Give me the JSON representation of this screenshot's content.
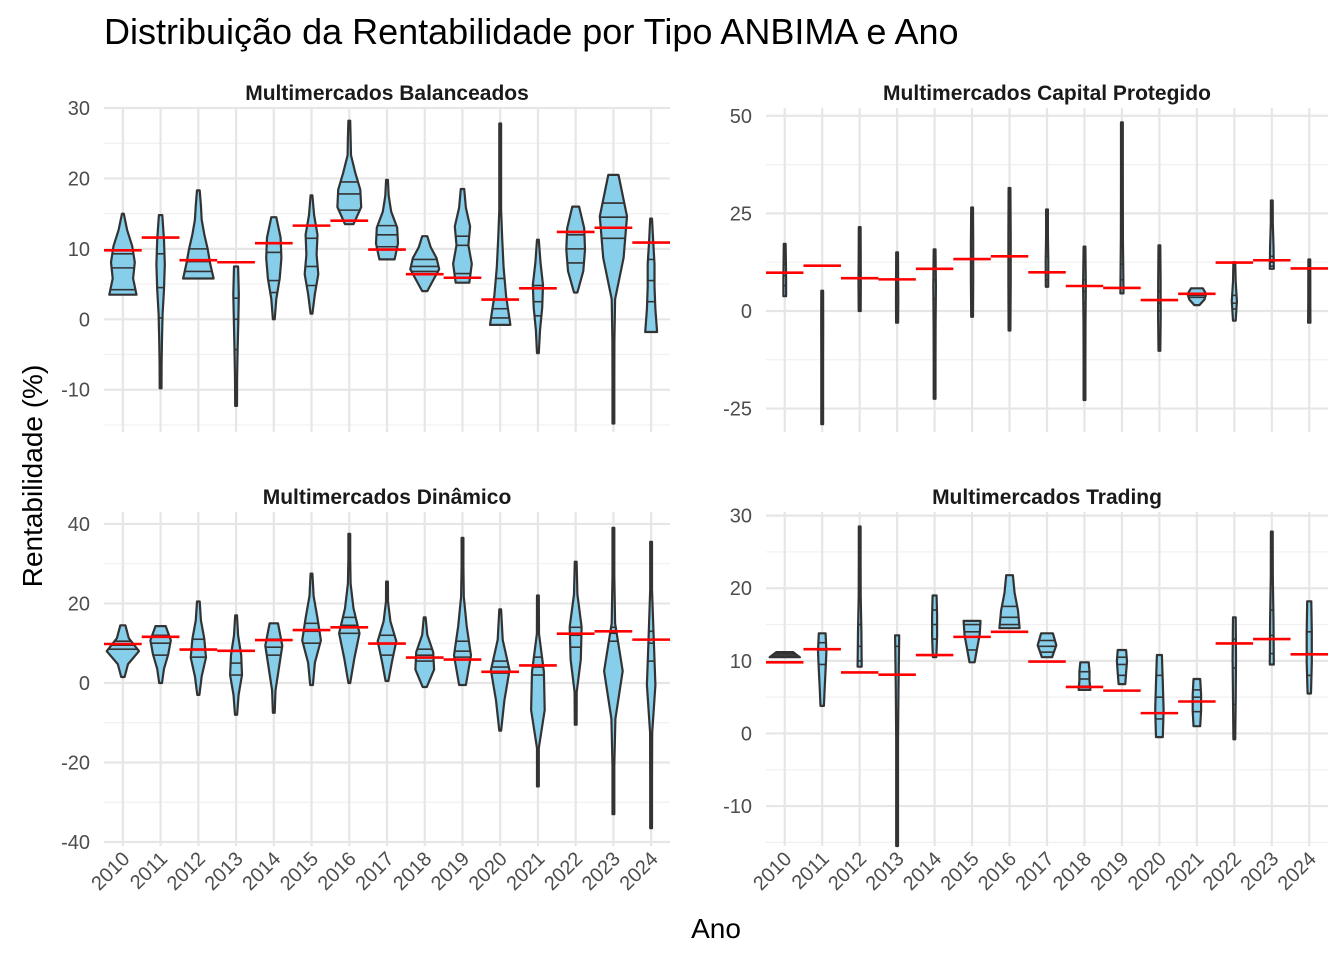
{
  "chart_data": {
    "type": "violin",
    "title": "Distribuição da Rentabilidade por Tipo ANBIMA e Ano",
    "xlabel": "Ano",
    "ylabel": "Rentabilidade (%)",
    "categories": [
      "2010",
      "2011",
      "2012",
      "2013",
      "2014",
      "2015",
      "2016",
      "2017",
      "2018",
      "2019",
      "2020",
      "2021",
      "2022",
      "2023",
      "2024"
    ],
    "benchmark_color": "#ff0000",
    "violin_fill": "#87ceeb",
    "benchmark": [
      9.8,
      11.6,
      8.4,
      8.1,
      10.8,
      13.3,
      14.0,
      9.9,
      6.4,
      5.9,
      2.8,
      4.4,
      12.4,
      13.0,
      10.9
    ],
    "panels": [
      {
        "title": "Multimercados Balanceados",
        "ylim": [
          -16,
          30
        ],
        "yticks": [
          -10,
          0,
          10,
          20,
          30
        ],
        "violins": [
          {
            "min": 3.5,
            "max": 15,
            "q1": 4.2,
            "median": 7.3,
            "q3": 9.3,
            "widths": [
              0.8,
              0.6,
              0.7,
              0.55,
              0.25,
              0.05
            ]
          },
          {
            "min": -9.8,
            "max": 14.8,
            "q1": 0.2,
            "median": 4.5,
            "q3": 9.3,
            "widths": [
              0.05,
              0.06,
              0.08,
              0.12,
              0.2,
              0.25,
              0.2,
              0.1
            ]
          },
          {
            "min": 5.8,
            "max": 18.3,
            "q1": 6.8,
            "median": 8.2,
            "q3": 10.0,
            "widths": [
              0.9,
              0.7,
              0.55,
              0.35,
              0.2,
              0.15,
              0.08
            ]
          },
          {
            "min": -12.3,
            "max": 7.5,
            "q1": -4.3,
            "median": 0.0,
            "q3": 3.0,
            "widths": [
              0.03,
              0.06,
              0.09,
              0.13,
              0.16,
              0.12
            ]
          },
          {
            "min": 0.0,
            "max": 14.5,
            "q1": 3.8,
            "median": 5.5,
            "q3": 9.5,
            "widths": [
              0.05,
              0.15,
              0.35,
              0.45,
              0.4,
              0.15
            ]
          },
          {
            "min": 0.8,
            "max": 17.6,
            "q1": 4.8,
            "median": 7.5,
            "q3": 11.5,
            "widths": [
              0.05,
              0.2,
              0.4,
              0.3,
              0.35,
              0.15,
              0.05
            ]
          },
          {
            "min": 13.5,
            "max": 28.2,
            "q1": 15.5,
            "median": 17.8,
            "q3": 19.5,
            "widths": [
              0.25,
              0.7,
              0.65,
              0.35,
              0.1,
              0.08,
              0.05
            ]
          },
          {
            "min": 8.5,
            "max": 19.8,
            "q1": 10.3,
            "median": 12.0,
            "q3": 13.3,
            "widths": [
              0.45,
              0.65,
              0.6,
              0.25,
              0.1,
              0.04
            ]
          },
          {
            "min": 4.0,
            "max": 11.8,
            "q1": 6.8,
            "median": 7.5,
            "q3": 8.5,
            "widths": [
              0.15,
              0.5,
              0.85,
              0.7,
              0.35,
              0.15
            ]
          },
          {
            "min": 5.2,
            "max": 18.5,
            "q1": 6.5,
            "median": 10.5,
            "q3": 11.8,
            "widths": [
              0.4,
              0.55,
              0.35,
              0.45,
              0.2,
              0.1
            ]
          },
          {
            "min": -0.8,
            "max": 27.8,
            "q1": 0.2,
            "median": 1.5,
            "q3": 5.8,
            "widths": [
              0.6,
              0.35,
              0.2,
              0.12,
              0.05,
              0.04,
              0.03,
              0.02
            ]
          },
          {
            "min": -4.8,
            "max": 11.3,
            "q1": 0.5,
            "median": 2.5,
            "q3": 4.8,
            "widths": [
              0.03,
              0.12,
              0.25,
              0.3,
              0.15,
              0.05
            ]
          },
          {
            "min": 3.8,
            "max": 16.0,
            "q1": 8.0,
            "median": 10.0,
            "q3": 12.0,
            "widths": [
              0.1,
              0.45,
              0.55,
              0.5,
              0.2
            ]
          },
          {
            "min": -14.8,
            "max": 20.5,
            "q1": 11.5,
            "median": 14.5,
            "q3": 16.5,
            "widths": [
              0.03,
              0.04,
              0.06,
              0.1,
              0.6,
              0.8,
              0.3
            ]
          },
          {
            "min": -1.8,
            "max": 14.3,
            "q1": 2.5,
            "median": 5.5,
            "q3": 8.5,
            "widths": [
              0.35,
              0.25,
              0.2,
              0.2,
              0.12,
              0.05
            ]
          }
        ]
      },
      {
        "title": "Multimercados Capital Protegido",
        "ylim": [
          -31,
          52
        ],
        "yticks": [
          -25,
          0,
          25,
          50
        ],
        "violins": [
          {
            "min": 3.8,
            "max": 17.2,
            "q1": 6.5,
            "median": 9.0,
            "q3": 12.0,
            "widths": [
              0.08,
              0.08,
              0.07,
              0.05
            ]
          },
          {
            "min": -29.0,
            "max": 5.2,
            "q1": -5.0,
            "median": -3.0,
            "q3": 0.0,
            "widths": [
              0.03,
              0.03,
              0.04,
              0.06,
              0.05
            ]
          },
          {
            "min": 0.0,
            "max": 21.5,
            "q1": 5.0,
            "median": 8.5,
            "q3": 12.0,
            "widths": [
              0.06,
              0.07,
              0.06,
              0.04
            ]
          },
          {
            "min": -3.0,
            "max": 15.0,
            "q1": 3.0,
            "median": 7.0,
            "q3": 10.0,
            "widths": [
              0.06,
              0.07,
              0.06,
              0.04
            ]
          },
          {
            "min": -22.5,
            "max": 15.8,
            "q1": 3.0,
            "median": 8.0,
            "q3": 11.0,
            "widths": [
              0.03,
              0.04,
              0.06,
              0.08,
              0.05
            ]
          },
          {
            "min": -1.5,
            "max": 26.5,
            "q1": 8.0,
            "median": 12.0,
            "q3": 16.0,
            "widths": [
              0.05,
              0.07,
              0.07,
              0.05
            ]
          },
          {
            "min": -5.0,
            "max": 31.5,
            "q1": 10.0,
            "median": 13.0,
            "q3": 17.0,
            "widths": [
              0.04,
              0.07,
              0.07,
              0.04
            ]
          },
          {
            "min": 6.2,
            "max": 26.0,
            "q1": 8.0,
            "median": 10.0,
            "q3": 14.0,
            "widths": [
              0.07,
              0.08,
              0.05,
              0.03
            ]
          },
          {
            "min": -22.8,
            "max": 16.5,
            "q1": 2.0,
            "median": 5.0,
            "q3": 8.0,
            "widths": [
              0.03,
              0.04,
              0.06,
              0.08,
              0.05
            ]
          },
          {
            "min": 4.5,
            "max": 48.3,
            "q1": 6.0,
            "median": 8.0,
            "q3": 12.0,
            "widths": [
              0.09,
              0.06,
              0.04,
              0.03
            ]
          },
          {
            "min": -10.2,
            "max": 16.8,
            "q1": 0.0,
            "median": 2.0,
            "q3": 5.0,
            "widths": [
              0.04,
              0.08,
              0.07,
              0.04
            ]
          },
          {
            "min": 1.5,
            "max": 5.8,
            "q1": 3.5,
            "median": 4.0,
            "q3": 4.5,
            "widths": [
              0.15,
              0.45,
              0.55,
              0.35
            ]
          },
          {
            "min": -2.5,
            "max": 12.5,
            "q1": 0.5,
            "median": 2.0,
            "q3": 4.0,
            "widths": [
              0.08,
              0.15,
              0.08,
              0.04
            ]
          },
          {
            "min": 10.8,
            "max": 28.3,
            "q1": 11.5,
            "median": 12.5,
            "q3": 14.0,
            "widths": [
              0.12,
              0.1,
              0.06,
              0.04
            ]
          },
          {
            "min": -3.0,
            "max": 13.2,
            "q1": 0.5,
            "median": 5.0,
            "q3": 10.0,
            "widths": [
              0.07,
              0.06,
              0.06,
              0.05
            ]
          }
        ]
      },
      {
        "title": "Multimercados Dinâmico",
        "ylim": [
          -41,
          43
        ],
        "yticks": [
          -40,
          -20,
          0,
          20,
          40
        ],
        "violins": [
          {
            "min": 1.5,
            "max": 14.5,
            "q1": 8.5,
            "median": 9.5,
            "q3": 10.5,
            "widths": [
              0.1,
              0.3,
              0.95,
              0.35,
              0.15
            ]
          },
          {
            "min": 0.0,
            "max": 14.3,
            "q1": 7.0,
            "median": 10.0,
            "q3": 12.0,
            "widths": [
              0.08,
              0.2,
              0.45,
              0.6,
              0.3
            ]
          },
          {
            "min": -3.0,
            "max": 20.5,
            "q1": 6.5,
            "median": 8.5,
            "q3": 11.0,
            "widths": [
              0.06,
              0.2,
              0.45,
              0.35,
              0.15,
              0.08
            ]
          },
          {
            "min": -8.0,
            "max": 17.0,
            "q1": 2.0,
            "median": 5.0,
            "q3": 8.0,
            "widths": [
              0.06,
              0.15,
              0.35,
              0.3,
              0.12,
              0.05
            ]
          },
          {
            "min": -7.5,
            "max": 15.0,
            "q1": 7.0,
            "median": 9.0,
            "q3": 11.0,
            "widths": [
              0.05,
              0.1,
              0.3,
              0.5,
              0.25
            ]
          },
          {
            "min": -0.5,
            "max": 27.5,
            "q1": 10.0,
            "median": 13.0,
            "q3": 15.0,
            "widths": [
              0.08,
              0.2,
              0.55,
              0.35,
              0.12,
              0.05
            ]
          },
          {
            "min": 0.0,
            "max": 37.5,
            "q1": 12.5,
            "median": 14.5,
            "q3": 16.5,
            "widths": [
              0.05,
              0.3,
              0.6,
              0.25,
              0.08,
              0.04,
              0.03
            ]
          },
          {
            "min": 0.5,
            "max": 25.5,
            "q1": 7.0,
            "median": 10.0,
            "q3": 12.0,
            "widths": [
              0.08,
              0.3,
              0.55,
              0.2,
              0.06,
              0.04
            ]
          },
          {
            "min": -1.0,
            "max": 16.5,
            "q1": 5.5,
            "median": 7.0,
            "q3": 8.5,
            "widths": [
              0.12,
              0.55,
              0.5,
              0.15,
              0.05
            ]
          },
          {
            "min": -0.5,
            "max": 36.5,
            "q1": 6.5,
            "median": 8.0,
            "q3": 10.5,
            "widths": [
              0.2,
              0.5,
              0.25,
              0.08,
              0.05,
              0.03
            ]
          },
          {
            "min": -12.0,
            "max": 18.5,
            "q1": 2.5,
            "median": 4.0,
            "q3": 5.5,
            "widths": [
              0.04,
              0.25,
              0.55,
              0.15,
              0.05
            ]
          },
          {
            "min": -26.0,
            "max": 22.0,
            "q1": 2.0,
            "median": 4.0,
            "q3": 6.5,
            "widths": [
              0.03,
              0.04,
              0.4,
              0.35,
              0.06,
              0.03
            ]
          },
          {
            "min": -10.5,
            "max": 30.5,
            "q1": 9.0,
            "median": 12.0,
            "q3": 14.0,
            "widths": [
              0.03,
              0.06,
              0.3,
              0.35,
              0.1,
              0.04
            ]
          },
          {
            "min": -33.0,
            "max": 39.0,
            "q1": 10.5,
            "median": 12.5,
            "q3": 14.0,
            "widths": [
              0.03,
              0.04,
              0.12,
              0.55,
              0.1,
              0.03,
              0.02
            ]
          },
          {
            "min": -36.5,
            "max": 35.5,
            "q1": 5.5,
            "median": 10.0,
            "q3": 13.0,
            "widths": [
              0.02,
              0.03,
              0.06,
              0.25,
              0.15,
              0.04,
              0.02
            ]
          }
        ]
      },
      {
        "title": "Multimercados Trading",
        "ylim": [
          -15.5,
          30.5
        ],
        "yticks": [
          -10,
          0,
          10,
          20,
          30
        ],
        "violins": [
          {
            "min": 10.5,
            "max": 11.2,
            "q1": 10.6,
            "median": 10.8,
            "q3": 11.0,
            "widths": [
              0.9,
              0.7,
              0.5
            ]
          },
          {
            "min": 3.8,
            "max": 13.8,
            "q1": 9.5,
            "median": 11.5,
            "q3": 12.5,
            "widths": [
              0.1,
              0.15,
              0.2,
              0.25,
              0.2
            ]
          },
          {
            "min": 9.2,
            "max": 28.5,
            "q1": 10.0,
            "median": 12.0,
            "q3": 15.0,
            "widths": [
              0.12,
              0.1,
              0.06,
              0.04,
              0.03
            ]
          },
          {
            "min": -15.5,
            "max": 13.5,
            "q1": 3.0,
            "median": 8.0,
            "q3": 12.0,
            "widths": [
              0.03,
              0.04,
              0.05,
              0.08,
              0.12
            ]
          },
          {
            "min": 10.5,
            "max": 19.0,
            "q1": 13.0,
            "median": 15.0,
            "q3": 17.0,
            "widths": [
              0.1,
              0.15,
              0.15,
              0.12
            ]
          },
          {
            "min": 9.8,
            "max": 15.5,
            "q1": 11.5,
            "median": 14.0,
            "q3": 15.0,
            "widths": [
              0.15,
              0.3,
              0.45,
              0.5
            ]
          },
          {
            "min": 14.5,
            "max": 21.8,
            "q1": 15.0,
            "median": 16.0,
            "q3": 17.5,
            "widths": [
              0.6,
              0.5,
              0.3,
              0.2
            ]
          },
          {
            "min": 10.5,
            "max": 13.8,
            "q1": 11.2,
            "median": 12.0,
            "q3": 12.8,
            "widths": [
              0.3,
              0.55,
              0.35
            ]
          },
          {
            "min": 6.0,
            "max": 9.8,
            "q1": 6.5,
            "median": 7.5,
            "q3": 8.5,
            "widths": [
              0.35,
              0.3,
              0.3,
              0.25
            ]
          },
          {
            "min": 6.8,
            "max": 11.5,
            "q1": 8.0,
            "median": 9.5,
            "q3": 10.5,
            "widths": [
              0.2,
              0.25,
              0.3,
              0.25
            ]
          },
          {
            "min": -0.5,
            "max": 10.8,
            "q1": 2.0,
            "median": 5.0,
            "q3": 8.0,
            "widths": [
              0.2,
              0.25,
              0.2,
              0.15
            ]
          },
          {
            "min": 1.0,
            "max": 7.5,
            "q1": 3.0,
            "median": 5.0,
            "q3": 6.0,
            "widths": [
              0.2,
              0.25,
              0.25,
              0.2
            ]
          },
          {
            "min": -0.8,
            "max": 16.0,
            "q1": 4.0,
            "median": 9.0,
            "q3": 13.0,
            "widths": [
              0.05,
              0.08,
              0.1,
              0.08
            ]
          },
          {
            "min": 9.5,
            "max": 27.8,
            "q1": 11.0,
            "median": 13.5,
            "q3": 17.0,
            "widths": [
              0.12,
              0.1,
              0.06,
              0.04
            ]
          },
          {
            "min": 5.5,
            "max": 18.2,
            "q1": 8.0,
            "median": 11.0,
            "q3": 14.0,
            "widths": [
              0.1,
              0.15,
              0.15,
              0.12
            ]
          }
        ]
      }
    ]
  }
}
